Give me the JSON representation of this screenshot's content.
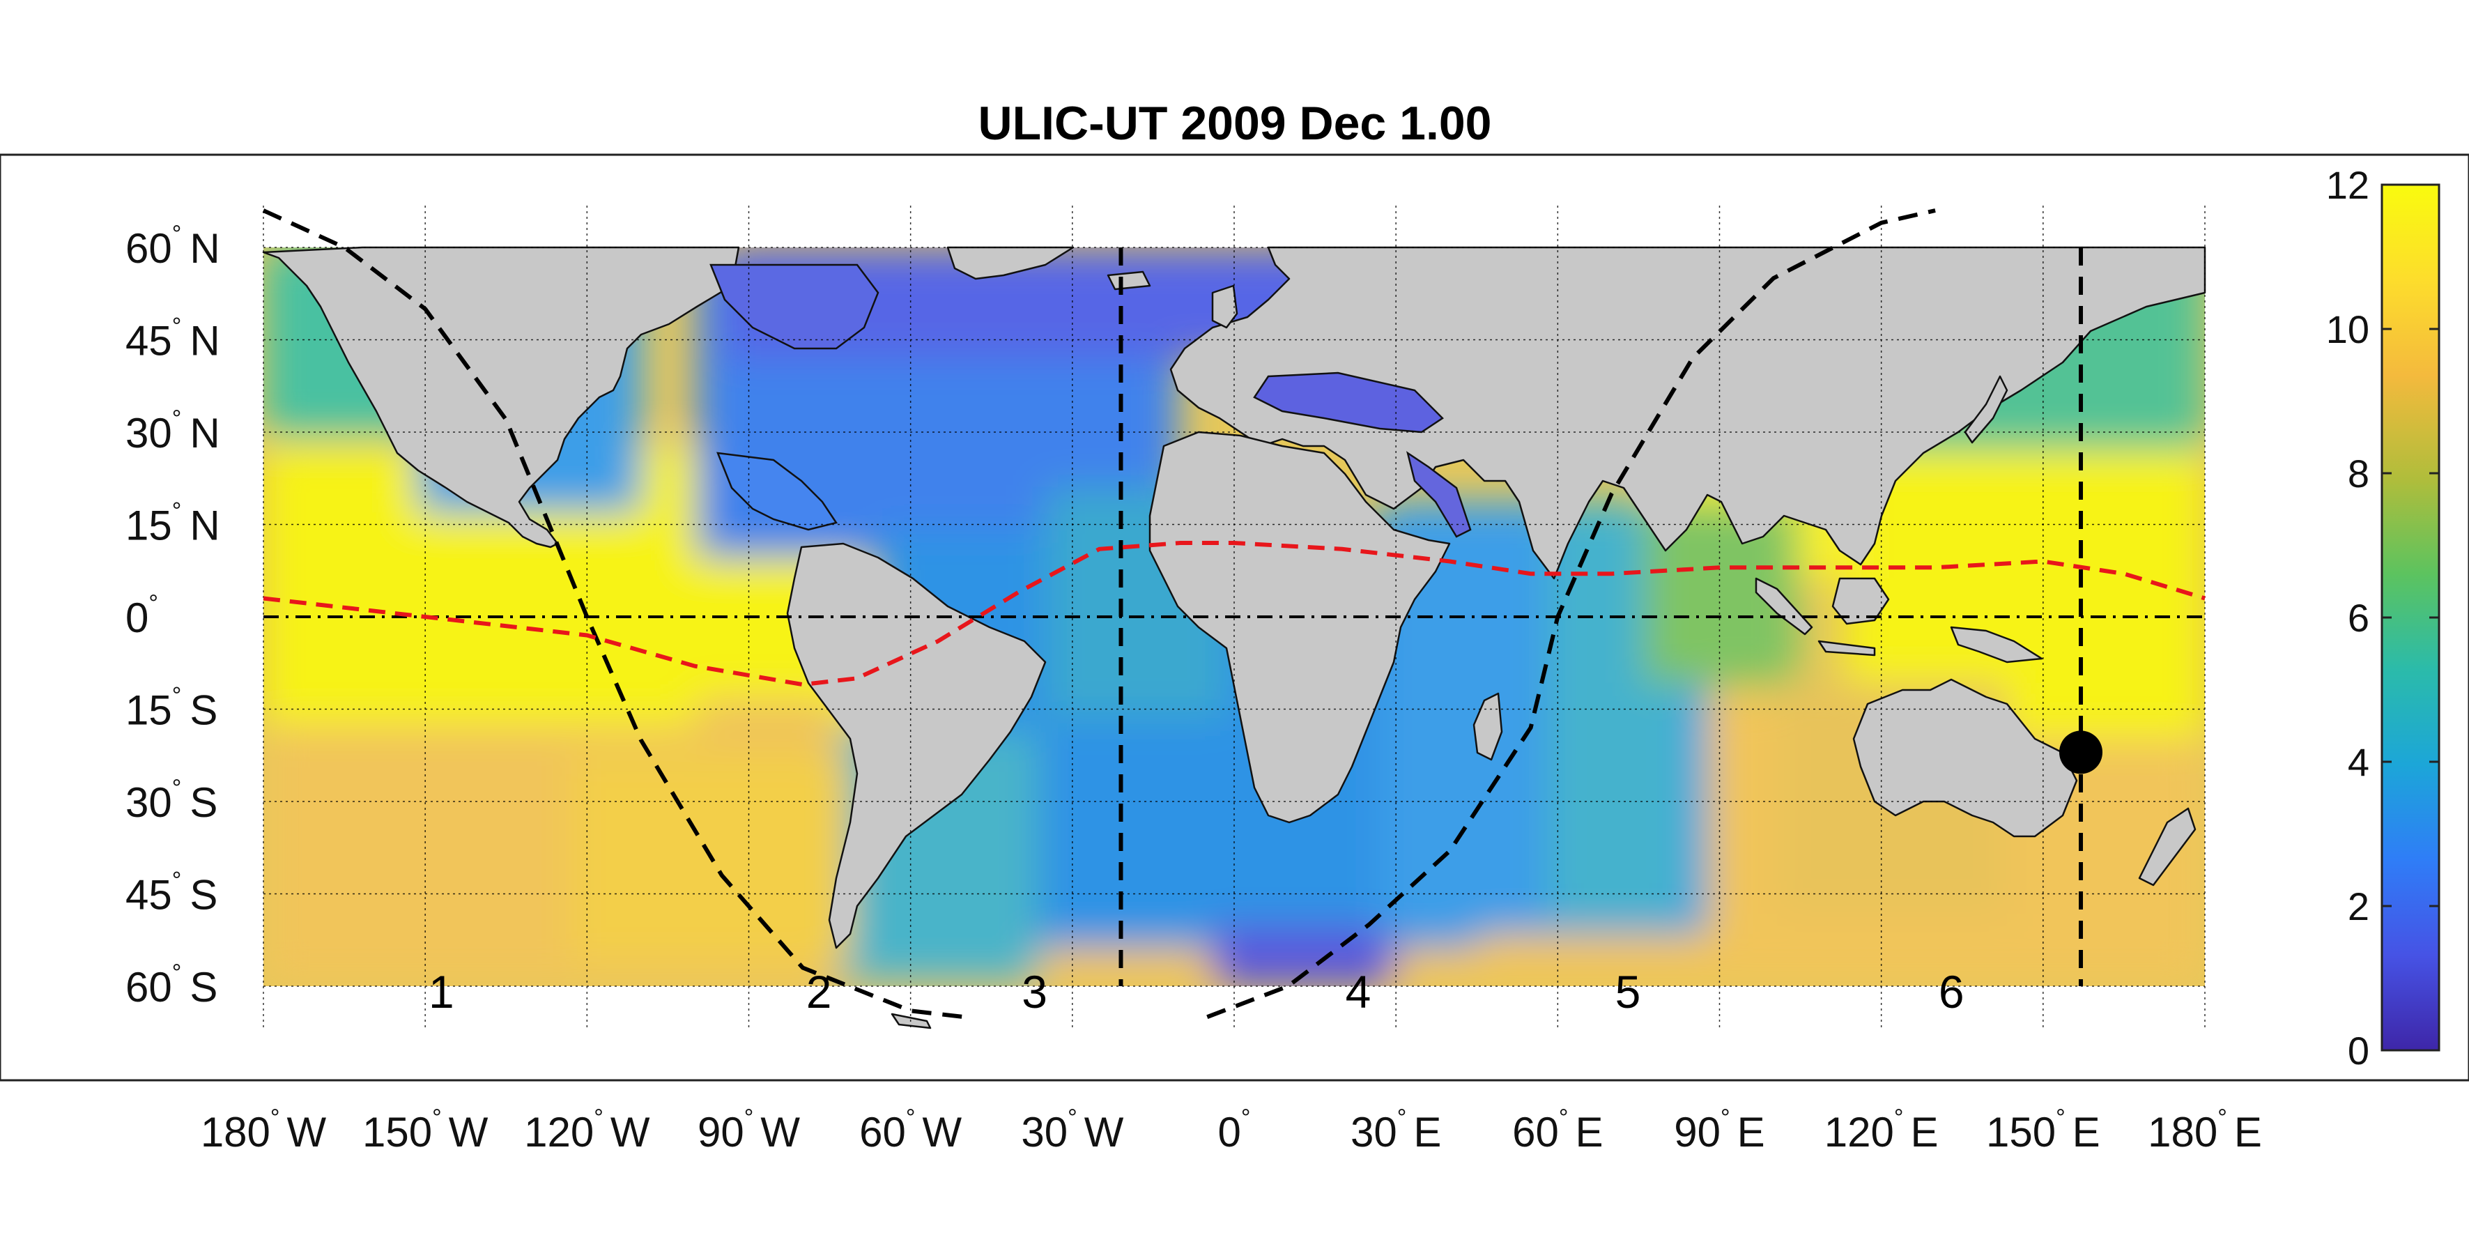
{
  "title": "ULIC-UT 2009 Dec  1.00",
  "chart_data": {
    "type": "heatmap",
    "title": "ULIC-UT 2009 Dec  1.00",
    "xlim": [
      -180,
      180
    ],
    "ylim": [
      -60,
      60
    ],
    "x_ticks": [
      {
        "value": -180,
        "num": "180",
        "hem": "W"
      },
      {
        "value": -150,
        "num": "150",
        "hem": "W"
      },
      {
        "value": -120,
        "num": "120",
        "hem": "W"
      },
      {
        "value": -90,
        "num": "90",
        "hem": "W"
      },
      {
        "value": -60,
        "num": "60",
        "hem": "W"
      },
      {
        "value": -30,
        "num": "30",
        "hem": "W"
      },
      {
        "value": 0,
        "num": "0",
        "hem": ""
      },
      {
        "value": 30,
        "num": "30",
        "hem": "E"
      },
      {
        "value": 60,
        "num": "60",
        "hem": "E"
      },
      {
        "value": 90,
        "num": "90",
        "hem": "E"
      },
      {
        "value": 120,
        "num": "120",
        "hem": "E"
      },
      {
        "value": 150,
        "num": "150",
        "hem": "E"
      },
      {
        "value": 180,
        "num": "180",
        "hem": "E"
      }
    ],
    "y_ticks": [
      {
        "value": 60,
        "num": "60",
        "hem": "N"
      },
      {
        "value": 45,
        "num": "45",
        "hem": "N"
      },
      {
        "value": 30,
        "num": "30",
        "hem": "N"
      },
      {
        "value": 15,
        "num": "15",
        "hem": "N"
      },
      {
        "value": 0,
        "num": "0",
        "hem": ""
      },
      {
        "value": -15,
        "num": "15",
        "hem": "S"
      },
      {
        "value": -30,
        "num": "30",
        "hem": "S"
      },
      {
        "value": -45,
        "num": "45",
        "hem": "S"
      },
      {
        "value": -60,
        "num": "60",
        "hem": "S"
      }
    ],
    "grid": true,
    "colorbar": {
      "min": 0,
      "max": 12,
      "ticks": [
        0,
        2,
        4,
        6,
        8,
        10,
        12
      ],
      "colormap": "parula",
      "location": "right"
    },
    "zone_labels": [
      {
        "text": "1",
        "lon": -147,
        "lat": -61
      },
      {
        "text": "2",
        "lon": -77,
        "lat": -61
      },
      {
        "text": "3",
        "lon": -37,
        "lat": -61
      },
      {
        "text": "4",
        "lon": 23,
        "lat": -61
      },
      {
        "text": "5",
        "lon": 73,
        "lat": -61
      },
      {
        "text": "6",
        "lon": 133,
        "lat": -61
      }
    ],
    "subsolar_point": {
      "lon": 157,
      "lat": -22
    },
    "meridian_lines": [
      -21,
      157
    ],
    "magnetic_equator": [
      [
        -180,
        3
      ],
      [
        -150,
        0
      ],
      [
        -120,
        -3
      ],
      [
        -100,
        -8
      ],
      [
        -80,
        -11
      ],
      [
        -70,
        -10
      ],
      [
        -55,
        -4
      ],
      [
        -40,
        4
      ],
      [
        -25,
        11
      ],
      [
        -10,
        12
      ],
      [
        0,
        12
      ],
      [
        20,
        11
      ],
      [
        40,
        9
      ],
      [
        55,
        7
      ],
      [
        70,
        7
      ],
      [
        90,
        8
      ],
      [
        110,
        8
      ],
      [
        130,
        8
      ],
      [
        150,
        9
      ],
      [
        165,
        7
      ],
      [
        180,
        3
      ]
    ],
    "terminator": [
      [
        -180,
        66
      ],
      [
        -165,
        60
      ],
      [
        -150,
        50
      ],
      [
        -135,
        32
      ],
      [
        -120,
        0
      ],
      [
        -110,
        -20
      ],
      [
        -95,
        -42
      ],
      [
        -80,
        -57
      ],
      [
        -60,
        -64
      ],
      [
        -50,
        -65
      ]
    ],
    "terminator_east": [
      [
        -5,
        -65
      ],
      [
        10,
        -60
      ],
      [
        25,
        -50
      ],
      [
        40,
        -38
      ],
      [
        55,
        -18
      ],
      [
        60,
        0
      ],
      [
        70,
        20
      ],
      [
        85,
        42
      ],
      [
        100,
        55
      ],
      [
        120,
        64
      ],
      [
        130,
        66
      ]
    ],
    "value_field_description": ""
  },
  "colors": {
    "land": "#c8c8c8",
    "grid": "#000000",
    "equator": "#000000",
    "magnetic_equator": "#e8161b",
    "terminator": "#000000",
    "sun": "#000000"
  },
  "colormap_stops": [
    "#3e26a8",
    "#4653e5",
    "#2f7df7",
    "#1ca6d8",
    "#2bbbaa",
    "#5cc35f",
    "#b0bd3b",
    "#f4ba3d",
    "#fddd2c",
    "#f9fb0e"
  ]
}
